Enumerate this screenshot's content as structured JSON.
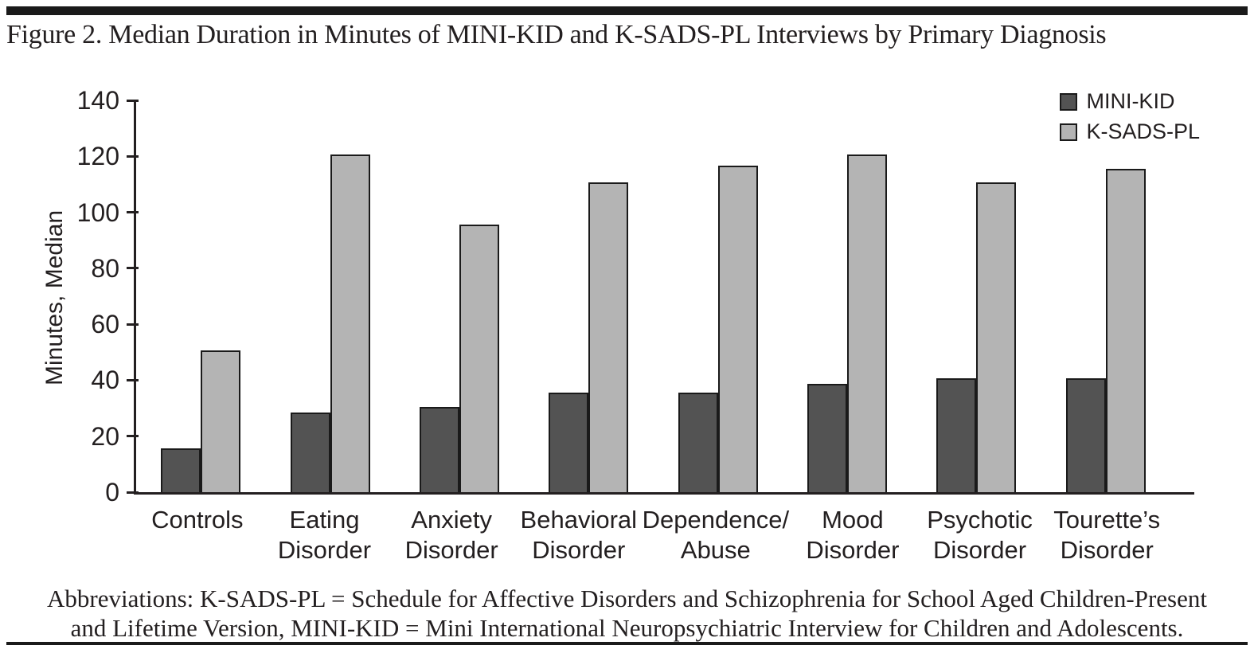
{
  "figure": {
    "title": "Figure 2. Median Duration in Minutes of MINI-KID and K-SADS-PL Interviews by Primary Diagnosis",
    "abbreviations_line1": "Abbreviations: K-SADS-PL = Schedule for Affective Disorders and Schizophrenia for School Aged Children-Present",
    "abbreviations_line2": "and Lifetime Version, MINI-KID = Mini International Neuropsychiatric Interview for Children and Adolescents."
  },
  "chart_data": {
    "type": "bar",
    "title": "Figure 2. Median Duration in Minutes of MINI-KID and K-SADS-PL Interviews by Primary Diagnosis",
    "xlabel": "",
    "ylabel": "Minutes, Median",
    "ylim": [
      0,
      140
    ],
    "yticks": [
      0,
      20,
      40,
      60,
      80,
      100,
      120,
      140
    ],
    "grid": false,
    "legend_position": "top-right",
    "categories": [
      "Controls",
      "Eating Disorder",
      "Anxiety Disorder",
      "Behavioral Disorder",
      "Dependence/Abuse",
      "Mood Disorder",
      "Psychotic Disorder",
      "Tourette’s Disorder"
    ],
    "category_label_lines": [
      [
        "Controls"
      ],
      [
        "Eating",
        "Disorder"
      ],
      [
        "Anxiety",
        "Disorder"
      ],
      [
        "Behavioral",
        "Disorder"
      ],
      [
        "Dependence/",
        "Abuse"
      ],
      [
        "Mood",
        "Disorder"
      ],
      [
        "Psychotic",
        "Disorder"
      ],
      [
        "Tourette’s",
        "Disorder"
      ]
    ],
    "series": [
      {
        "name": "MINI-KID",
        "color": "#535353",
        "values": [
          15,
          28,
          30,
          35,
          35,
          38,
          40,
          40
        ]
      },
      {
        "name": "K-SADS-PL",
        "color": "#b4b4b4",
        "values": [
          50,
          120,
          95,
          110,
          116,
          120,
          110,
          115
        ]
      }
    ],
    "bar_border_color": "#1a1a1a",
    "axis_color": "#231f20"
  }
}
